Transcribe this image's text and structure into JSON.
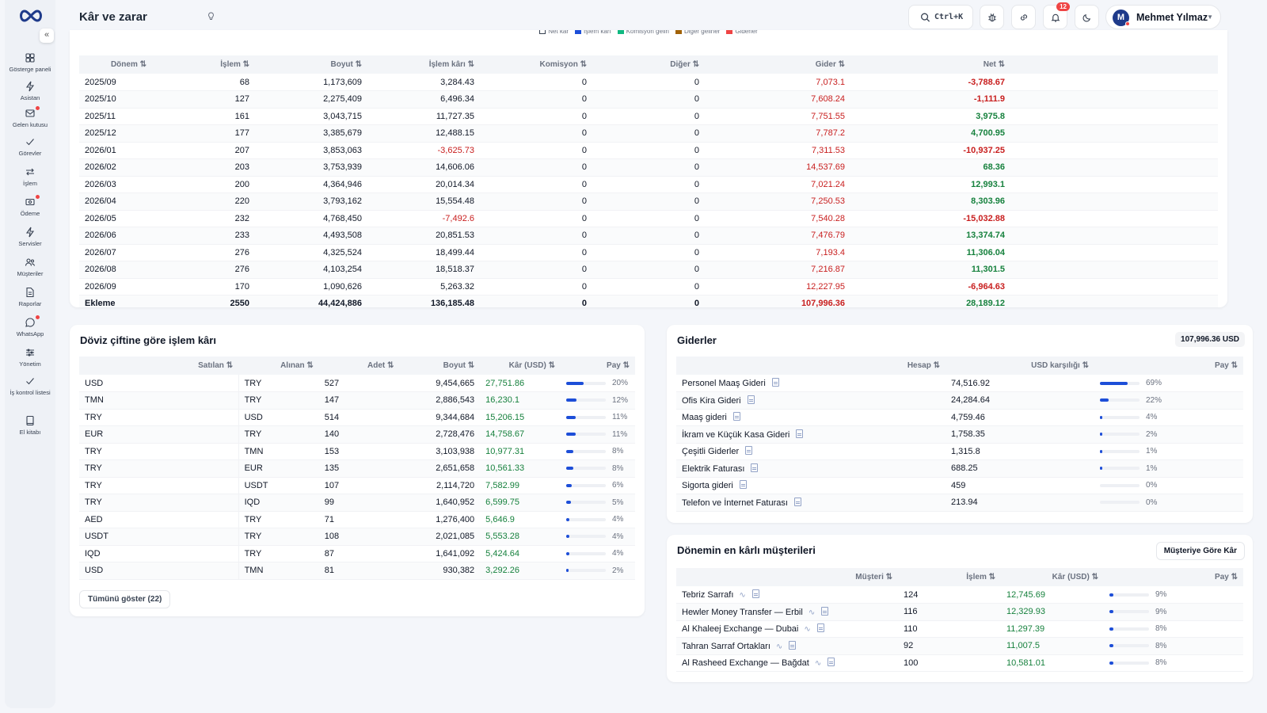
{
  "header": {
    "title": "Kâr ve zarar",
    "title_icon": "lightbulb-icon",
    "search_shortcut": "Ctrl+K",
    "notification_count": "12",
    "user_initial": "M",
    "user_name": "Mehmet Yılmaz"
  },
  "sidebar": {
    "collapse_icon": "«",
    "items": [
      {
        "label": "Gösterge paneli",
        "icon": "dashboard-icon"
      },
      {
        "label": "Asistan",
        "icon": "bolt-icon"
      },
      {
        "label": "Gelen kutusu",
        "icon": "inbox-icon"
      },
      {
        "label": "Görevler",
        "icon": "check-icon"
      },
      {
        "label": "İşlem",
        "icon": "swap-icon"
      },
      {
        "label": "Ödeme",
        "icon": "payment-icon"
      },
      {
        "label": "Servisler",
        "icon": "bolt-icon"
      },
      {
        "label": "Müşteriler",
        "icon": "users-icon"
      },
      {
        "label": "Raporlar",
        "icon": "report-icon"
      },
      {
        "label": "WhatsApp",
        "icon": "chat-icon"
      },
      {
        "label": "Yönetim",
        "icon": "sliders-icon"
      },
      {
        "label": "İş kontrol listesi",
        "icon": "checklist-icon"
      },
      {
        "label": "El kitabı",
        "icon": "book-icon"
      }
    ]
  },
  "legend": [
    {
      "label": "Net kâr",
      "color": "#ffffff"
    },
    {
      "label": "İşlem kârı",
      "color": "#1d4ed8"
    },
    {
      "label": "Komisyon geliri",
      "color": "#10b981"
    },
    {
      "label": "Diğer gelirler",
      "color": "#a16207"
    },
    {
      "label": "Giderler",
      "color": "#ef4444"
    }
  ],
  "pnl_table": {
    "headers": [
      "Dönem ⇅",
      "İşlem ⇅",
      "Boyut ⇅",
      "İşlem kârı ⇅",
      "Komisyon ⇅",
      "Diğer ⇅",
      "Gider ⇅",
      "Net ⇅"
    ],
    "rows": [
      [
        "2025/09",
        "68",
        "1,173,609",
        "3,284.43",
        "0",
        "0",
        "7,073.1",
        "-3,788.67"
      ],
      [
        "2025/10",
        "127",
        "2,275,409",
        "6,496.34",
        "0",
        "0",
        "7,608.24",
        "-1,111.9"
      ],
      [
        "2025/11",
        "161",
        "3,043,715",
        "11,727.35",
        "0",
        "0",
        "7,751.55",
        "3,975.8"
      ],
      [
        "2025/12",
        "177",
        "3,385,679",
        "12,488.15",
        "0",
        "0",
        "7,787.2",
        "4,700.95"
      ],
      [
        "2026/01",
        "207",
        "3,853,063",
        "-3,625.73",
        "0",
        "0",
        "7,311.53",
        "-10,937.25"
      ],
      [
        "2026/02",
        "203",
        "3,753,939",
        "14,606.06",
        "0",
        "0",
        "14,537.69",
        "68.36"
      ],
      [
        "2026/03",
        "200",
        "4,364,946",
        "20,014.34",
        "0",
        "0",
        "7,021.24",
        "12,993.1"
      ],
      [
        "2026/04",
        "220",
        "3,793,162",
        "15,554.48",
        "0",
        "0",
        "7,250.53",
        "8,303.96"
      ],
      [
        "2026/05",
        "232",
        "4,768,450",
        "-7,492.6",
        "0",
        "0",
        "7,540.28",
        "-15,032.88"
      ],
      [
        "2026/06",
        "233",
        "4,493,508",
        "20,851.53",
        "0",
        "0",
        "7,476.79",
        "13,374.74"
      ],
      [
        "2026/07",
        "276",
        "4,325,524",
        "18,499.44",
        "0",
        "0",
        "7,193.4",
        "11,306.04"
      ],
      [
        "2026/08",
        "276",
        "4,103,254",
        "18,518.37",
        "0",
        "0",
        "7,216.87",
        "11,301.5"
      ],
      [
        "2026/09",
        "170",
        "1,090,626",
        "5,263.32",
        "0",
        "0",
        "12,227.95",
        "-6,964.63"
      ],
      [
        "Ekleme",
        "2550",
        "44,424,886",
        "136,185.48",
        "0",
        "0",
        "107,996.36",
        "28,189.12"
      ]
    ]
  },
  "pair_profit": {
    "title": "Döviz çiftine göre işlem kârı",
    "headers": [
      "Satılan ⇅",
      "Alınan ⇅",
      "Adet ⇅",
      "Boyut ⇅",
      "Kâr (USD) ⇅",
      "Pay ⇅"
    ],
    "rows": [
      {
        "sold": "USD",
        "bought": "TRY",
        "count": "527",
        "size": "9,454,665",
        "profit": "27,751.86",
        "share": "20%",
        "share_value": 20
      },
      {
        "sold": "TMN",
        "bought": "TRY",
        "count": "147",
        "size": "2,886,543",
        "profit": "16,230.1",
        "share": "12%",
        "share_value": 12
      },
      {
        "sold": "TRY",
        "bought": "USD",
        "count": "514",
        "size": "9,344,684",
        "profit": "15,206.15",
        "share": "11%",
        "share_value": 11
      },
      {
        "sold": "EUR",
        "bought": "TRY",
        "count": "140",
        "size": "2,728,476",
        "profit": "14,758.67",
        "share": "11%",
        "share_value": 11
      },
      {
        "sold": "TRY",
        "bought": "TMN",
        "count": "153",
        "size": "3,103,938",
        "profit": "10,977.31",
        "share": "8%",
        "share_value": 8
      },
      {
        "sold": "TRY",
        "bought": "EUR",
        "count": "135",
        "size": "2,651,658",
        "profit": "10,561.33",
        "share": "8%",
        "share_value": 8
      },
      {
        "sold": "TRY",
        "bought": "USDT",
        "count": "107",
        "size": "2,114,720",
        "profit": "7,582.99",
        "share": "6%",
        "share_value": 6
      },
      {
        "sold": "TRY",
        "bought": "IQD",
        "count": "99",
        "size": "1,640,952",
        "profit": "6,599.75",
        "share": "5%",
        "share_value": 5
      },
      {
        "sold": "AED",
        "bought": "TRY",
        "count": "71",
        "size": "1,276,400",
        "profit": "5,646.9",
        "share": "4%",
        "share_value": 4
      },
      {
        "sold": "USDT",
        "bought": "TRY",
        "count": "108",
        "size": "2,021,085",
        "profit": "5,553.28",
        "share": "4%",
        "share_value": 4
      },
      {
        "sold": "IQD",
        "bought": "TRY",
        "count": "87",
        "size": "1,641,092",
        "profit": "5,424.64",
        "share": "4%",
        "share_value": 4
      },
      {
        "sold": "USD",
        "bought": "TMN",
        "count": "81",
        "size": "930,382",
        "profit": "3,292.26",
        "share": "2%",
        "share_value": 2
      }
    ],
    "show_all": "Tümünü göster (22)"
  },
  "expenses": {
    "title": "Giderler",
    "total": "107,996.36 USD",
    "headers": [
      "Hesap ⇅",
      "USD karşılığı ⇅",
      "Pay ⇅"
    ],
    "rows": [
      {
        "name": "Personel Maaş Gideri",
        "amount": "74,516.92",
        "share": "69%",
        "share_value": 69
      },
      {
        "name": "Ofis Kira Gideri",
        "amount": "24,284.64",
        "share": "22%",
        "share_value": 22
      },
      {
        "name": "Maaş gideri",
        "amount": "4,759.46",
        "share": "4%",
        "share_value": 4
      },
      {
        "name": "İkram ve Küçük Kasa Gideri",
        "amount": "1,758.35",
        "share": "2%",
        "share_value": 2
      },
      {
        "name": "Çeşitli Giderler",
        "amount": "1,315.8",
        "share": "1%",
        "share_value": 1
      },
      {
        "name": "Elektrik Faturası",
        "amount": "688.25",
        "share": "1%",
        "share_value": 1
      },
      {
        "name": "Sigorta gideri",
        "amount": "459",
        "share": "0%",
        "share_value": 0
      },
      {
        "name": "Telefon ve İnternet Faturası",
        "amount": "213.94",
        "share": "0%",
        "share_value": 0
      }
    ]
  },
  "top_customers": {
    "title": "Dönemin en kârlı müşterileri",
    "button": "Müşteriye Göre Kâr",
    "headers": [
      "Müşteri ⇅",
      "İşlem ⇅",
      "Kâr (USD) ⇅",
      "Pay ⇅"
    ],
    "rows": [
      {
        "name": "Tebriz Sarrafı",
        "count": "124",
        "profit": "12,745.69",
        "share": "9%",
        "share_value": 9
      },
      {
        "name": "Hewler Money Transfer — Erbil",
        "count": "116",
        "profit": "12,329.93",
        "share": "9%",
        "share_value": 9
      },
      {
        "name": "Al Khaleej Exchange — Dubai",
        "count": "110",
        "profit": "11,297.39",
        "share": "8%",
        "share_value": 8
      },
      {
        "name": "Tahran Sarraf Ortakları",
        "count": "92",
        "profit": "11,007.5",
        "share": "8%",
        "share_value": 8
      },
      {
        "name": "Al Rasheed Exchange — Bağdat",
        "count": "100",
        "profit": "10,581.01",
        "share": "8%",
        "share_value": 8
      }
    ]
  }
}
